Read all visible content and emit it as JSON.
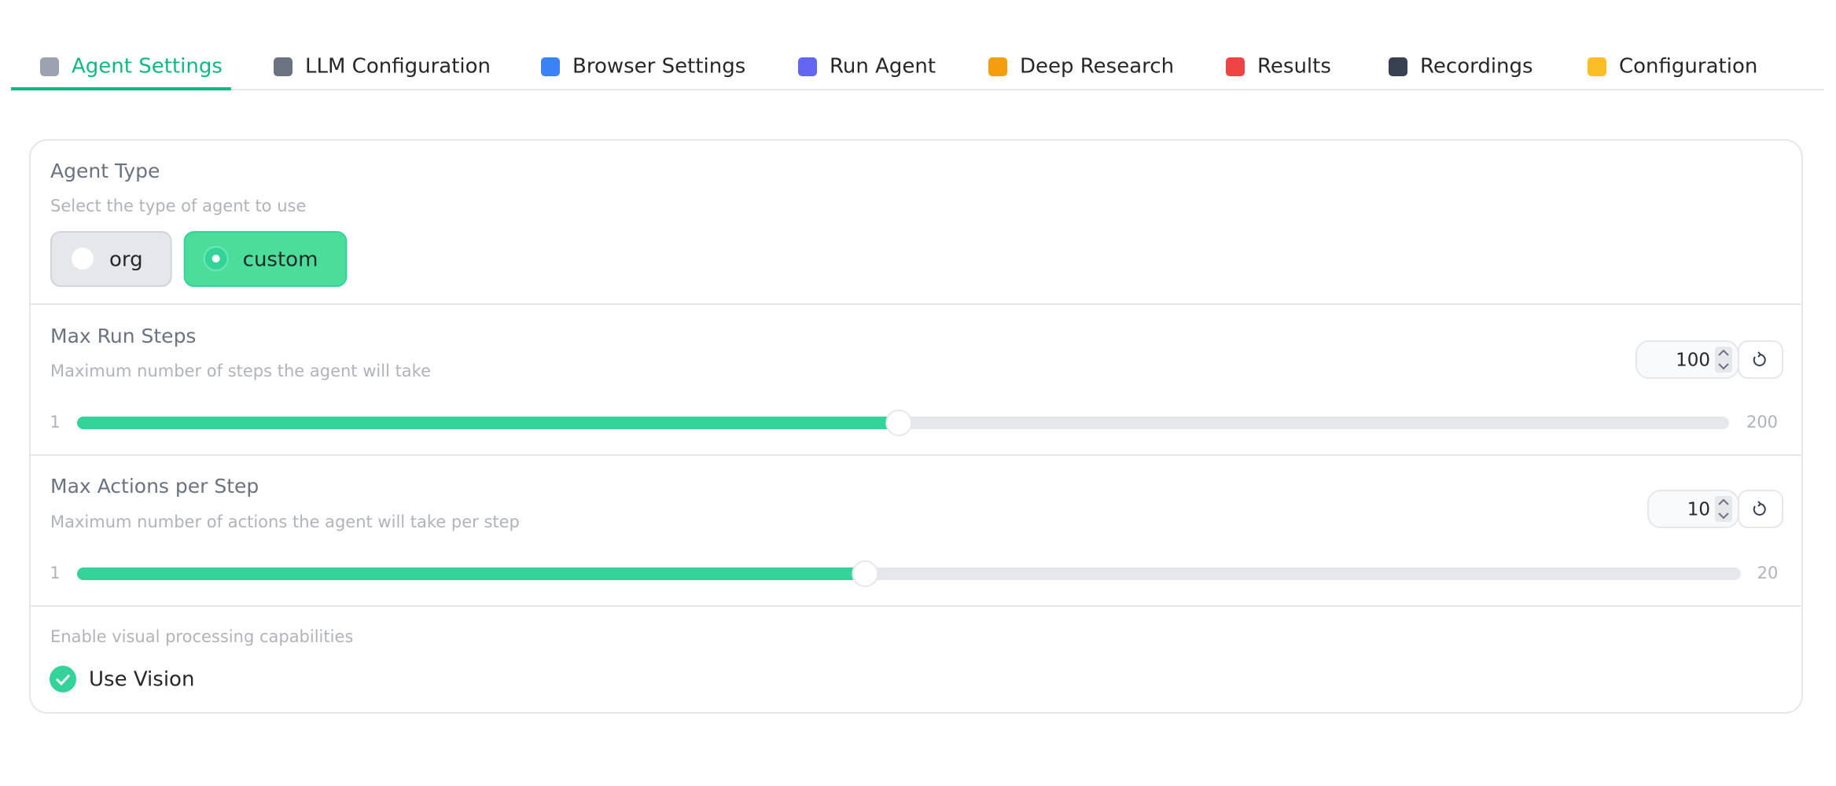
{
  "tabs": [
    {
      "label": "Agent Settings",
      "active": true
    },
    {
      "label": "LLM Configuration",
      "active": false
    },
    {
      "label": "Browser Settings",
      "active": false
    },
    {
      "label": "Run Agent",
      "active": false
    },
    {
      "label": "Deep Research",
      "active": false
    },
    {
      "label": "Results",
      "active": false
    },
    {
      "label": "Recordings",
      "active": false
    },
    {
      "label": "Configuration",
      "active": false
    }
  ],
  "agent_type": {
    "label": "Agent Type",
    "info": "Select the type of agent to use",
    "options": [
      "org",
      "custom"
    ],
    "selected": 1
  },
  "sliders": [
    {
      "label": "Max Run Steps",
      "info": "Maximum number of steps the agent will take",
      "value": 100,
      "min": 1,
      "max": 200
    },
    {
      "label": "Max Actions per Step",
      "info": "Maximum number of actions the agent will take per step",
      "value": 10,
      "min": 1,
      "max": 20
    }
  ],
  "vision": {
    "info": "Enable visual processing capabilities",
    "label": "Use Vision",
    "checked": true
  }
}
